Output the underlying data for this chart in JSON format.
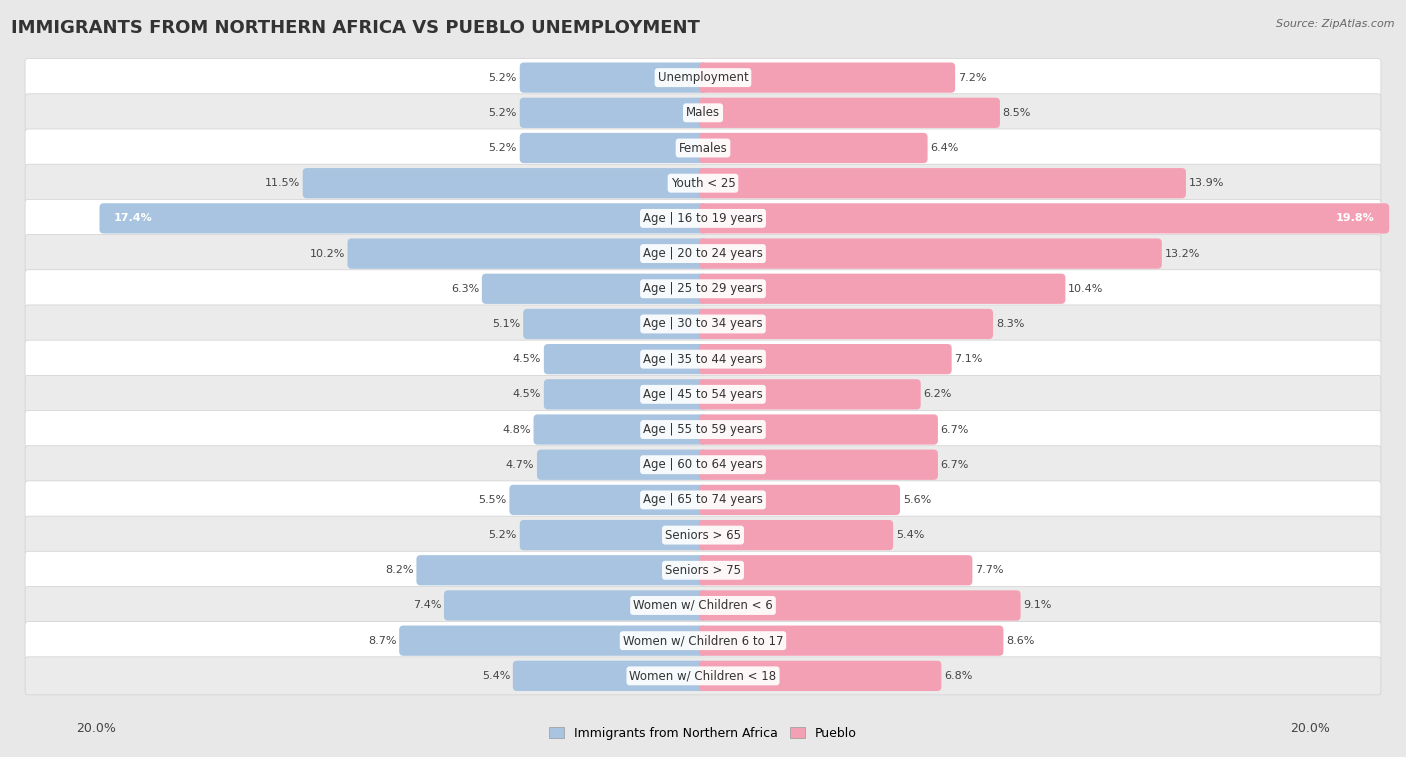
{
  "title": "IMMIGRANTS FROM NORTHERN AFRICA VS PUEBLO UNEMPLOYMENT",
  "source": "Source: ZipAtlas.com",
  "categories": [
    "Unemployment",
    "Males",
    "Females",
    "Youth < 25",
    "Age | 16 to 19 years",
    "Age | 20 to 24 years",
    "Age | 25 to 29 years",
    "Age | 30 to 34 years",
    "Age | 35 to 44 years",
    "Age | 45 to 54 years",
    "Age | 55 to 59 years",
    "Age | 60 to 64 years",
    "Age | 65 to 74 years",
    "Seniors > 65",
    "Seniors > 75",
    "Women w/ Children < 6",
    "Women w/ Children 6 to 17",
    "Women w/ Children < 18"
  ],
  "left_values": [
    5.2,
    5.2,
    5.2,
    11.5,
    17.4,
    10.2,
    6.3,
    5.1,
    4.5,
    4.5,
    4.8,
    4.7,
    5.5,
    5.2,
    8.2,
    7.4,
    8.7,
    5.4
  ],
  "right_values": [
    7.2,
    8.5,
    6.4,
    13.9,
    19.8,
    13.2,
    10.4,
    8.3,
    7.1,
    6.2,
    6.7,
    6.7,
    5.6,
    5.4,
    7.7,
    9.1,
    8.6,
    6.8
  ],
  "left_color": "#a8c4e0",
  "right_color": "#f4a0b4",
  "left_label": "Immigrants from Northern Africa",
  "right_label": "Pueblo",
  "axis_max": 20.0,
  "bar_height": 0.62,
  "bg_color": "#e8e8e8",
  "row_color_white": "#ffffff",
  "row_color_gray": "#ebebeb",
  "title_fontsize": 13,
  "label_fontsize": 8.5,
  "value_fontsize": 8.0
}
